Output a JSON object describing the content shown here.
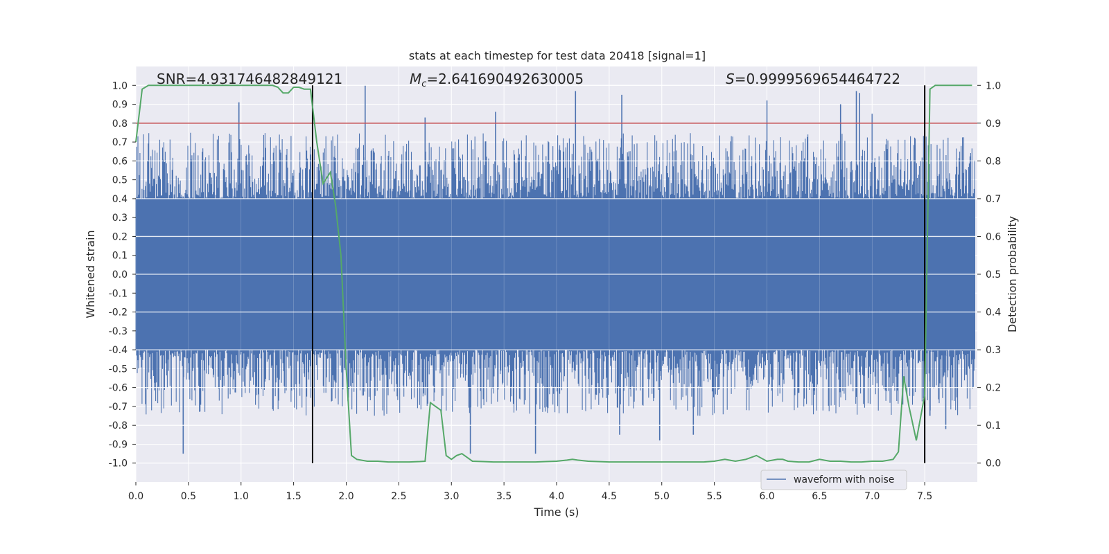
{
  "chart_data": {
    "type": "line",
    "title": "stats at each timestep for test data 20418 [signal=1]",
    "xlabel": "Time (s)",
    "ylabel_left": "Whitened strain",
    "ylabel_right": "Detection probability",
    "xlim": [
      0.0,
      8.0
    ],
    "ylim_left": [
      -1.1,
      1.1
    ],
    "ylim_right": [
      -0.05,
      1.05
    ],
    "x_ticks": [
      "0.0",
      "0.5",
      "1.0",
      "1.5",
      "2.0",
      "2.5",
      "3.0",
      "3.5",
      "4.0",
      "4.5",
      "5.0",
      "5.5",
      "6.0",
      "6.5",
      "7.0",
      "7.5"
    ],
    "y_left_ticks": [
      "1.0",
      "0.9",
      "0.8",
      "0.7",
      "0.6",
      "0.5",
      "0.4",
      "0.3",
      "0.2",
      "0.1",
      "0.0",
      "-0.1",
      "-0.2",
      "-0.3",
      "-0.4",
      "-0.5",
      "-0.6",
      "-0.7",
      "-0.8",
      "-0.9",
      "-1.0"
    ],
    "y_right_ticks": [
      "1.0",
      "0.9",
      "0.8",
      "0.7",
      "0.6",
      "0.5",
      "0.4",
      "0.3",
      "0.2",
      "0.1",
      "0.0"
    ],
    "annotations": {
      "snr": "SNR=4.931746482849121",
      "mc_symbol": "M",
      "mc_sub": "c",
      "mc_value": "=2.641690492630005",
      "s_symbol": "S",
      "s_value": "=0.9999569654464722"
    },
    "threshold": {
      "value": 0.8,
      "axis": "left",
      "color": "#c44e52"
    },
    "vlines": [
      1.68,
      7.5
    ],
    "legend": {
      "label": "waveform with noise",
      "location": "lower-right"
    },
    "waveform": {
      "name": "waveform with noise",
      "color": "#4c72b0",
      "core_amplitude": 0.4,
      "typical_peak_range": [
        0.45,
        0.75
      ],
      "max_positive": 1.0,
      "min_negative": -0.95,
      "spikes": [
        {
          "t": 0.45,
          "v": -0.95
        },
        {
          "t": 0.98,
          "v": 0.91
        },
        {
          "t": 1.68,
          "v": 0.62
        },
        {
          "t": 2.18,
          "v": 1.0
        },
        {
          "t": 2.75,
          "v": 0.83
        },
        {
          "t": 3.18,
          "v": -0.95
        },
        {
          "t": 3.42,
          "v": 0.86
        },
        {
          "t": 3.8,
          "v": -0.95
        },
        {
          "t": 4.18,
          "v": 0.97
        },
        {
          "t": 4.6,
          "v": -0.85
        },
        {
          "t": 4.62,
          "v": 0.95
        },
        {
          "t": 4.98,
          "v": -0.88
        },
        {
          "t": 5.3,
          "v": -0.85
        },
        {
          "t": 6.0,
          "v": 0.92
        },
        {
          "t": 6.7,
          "v": 0.9
        },
        {
          "t": 6.85,
          "v": 0.97
        },
        {
          "t": 6.88,
          "v": 0.96
        },
        {
          "t": 7.0,
          "v": 0.85
        },
        {
          "t": 7.55,
          "v": -0.75
        },
        {
          "t": 7.7,
          "v": -0.82
        }
      ]
    },
    "probability": {
      "name": "detection probability",
      "color": "#55a868",
      "axis": "right",
      "x": [
        0.0,
        0.06,
        0.12,
        0.2,
        0.3,
        0.4,
        0.5,
        0.6,
        0.7,
        0.8,
        0.9,
        1.0,
        1.1,
        1.2,
        1.3,
        1.35,
        1.4,
        1.45,
        1.5,
        1.55,
        1.6,
        1.66,
        1.72,
        1.78,
        1.85,
        1.9,
        1.95,
        2.0,
        2.05,
        2.1,
        2.2,
        2.3,
        2.4,
        2.5,
        2.6,
        2.7,
        2.75,
        2.8,
        2.9,
        2.95,
        3.0,
        3.05,
        3.1,
        3.2,
        3.3,
        3.4,
        3.5,
        3.6,
        3.7,
        3.8,
        3.9,
        4.0,
        4.1,
        4.15,
        4.2,
        4.3,
        4.5,
        4.7,
        4.9,
        5.0,
        5.2,
        5.4,
        5.5,
        5.6,
        5.7,
        5.8,
        5.9,
        6.0,
        6.1,
        6.15,
        6.2,
        6.3,
        6.4,
        6.5,
        6.6,
        6.7,
        6.8,
        6.9,
        7.0,
        7.1,
        7.2,
        7.25,
        7.3,
        7.35,
        7.42,
        7.5,
        7.55,
        7.6,
        7.7,
        7.8,
        7.9,
        7.95
      ],
      "y": [
        0.85,
        0.99,
        1.0,
        1.0,
        1.0,
        1.0,
        1.0,
        1.0,
        1.0,
        1.0,
        1.0,
        1.0,
        1.0,
        1.0,
        1.0,
        0.995,
        0.98,
        0.98,
        0.995,
        0.995,
        0.99,
        0.99,
        0.85,
        0.74,
        0.77,
        0.68,
        0.55,
        0.25,
        0.02,
        0.01,
        0.005,
        0.005,
        0.003,
        0.003,
        0.003,
        0.004,
        0.005,
        0.16,
        0.14,
        0.02,
        0.01,
        0.02,
        0.025,
        0.005,
        0.004,
        0.003,
        0.003,
        0.003,
        0.003,
        0.003,
        0.004,
        0.005,
        0.008,
        0.01,
        0.008,
        0.005,
        0.003,
        0.003,
        0.003,
        0.003,
        0.003,
        0.003,
        0.005,
        0.01,
        0.005,
        0.01,
        0.02,
        0.005,
        0.01,
        0.01,
        0.005,
        0.003,
        0.003,
        0.01,
        0.005,
        0.005,
        0.003,
        0.003,
        0.005,
        0.005,
        0.01,
        0.03,
        0.23,
        0.15,
        0.06,
        0.18,
        0.99,
        1.0,
        1.0,
        1.0,
        1.0,
        1.0
      ]
    }
  }
}
